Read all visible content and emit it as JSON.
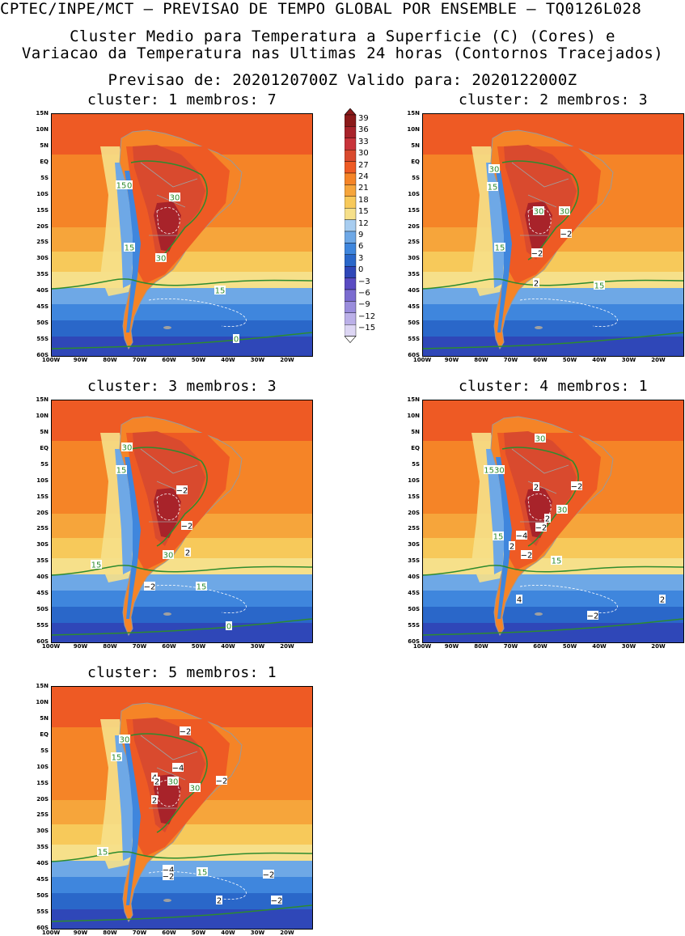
{
  "header": {
    "line1": "CPTEC/INPE/MCT – PREVISAO DE TEMPO GLOBAL POR ENSEMBLE – TQ0126L028",
    "line2": "Cluster Medio para Temperatura a Superficie (C) (Cores) e",
    "line3": "Variacao da Temperatura nas Ultimas 24 horas (Contornos Tracejados)",
    "line4": "Previsao de: 2020120700Z   Valido para: 2020122000Z"
  },
  "axes": {
    "lat_labels": [
      "15N",
      "10N",
      "5N",
      "EQ",
      "5S",
      "10S",
      "15S",
      "20S",
      "25S",
      "30S",
      "35S",
      "40S",
      "45S",
      "50S",
      "55S",
      "60S"
    ],
    "lon_labels": [
      "100W",
      "90W",
      "80W",
      "70W",
      "60W",
      "50W",
      "40W",
      "30W",
      "20W"
    ]
  },
  "colorbar": {
    "labels": [
      "39",
      "36",
      "33",
      "30",
      "27",
      "24",
      "21",
      "18",
      "15",
      "12",
      "9",
      "6",
      "3",
      "0",
      "−3",
      "−6",
      "−9",
      "−12",
      "−15"
    ],
    "colors": [
      "#8b1a1a",
      "#a8232a",
      "#c8343a",
      "#d94a2e",
      "#ee5a24",
      "#f58427",
      "#f6a53b",
      "#f7c95a",
      "#f6e08a",
      "#a8cdf0",
      "#6ea8e6",
      "#3f86dd",
      "#2a67c9",
      "#2f47b8",
      "#5a4bc2",
      "#7b6cd0",
      "#9a8ddc",
      "#bbb0e8",
      "#ddd6f4"
    ]
  },
  "panels": [
    {
      "title": "cluster: 1   membros: 7",
      "labels": [
        {
          "t": "30",
          "c": "g"
        },
        {
          "t": "15",
          "c": "g"
        },
        {
          "t": "30",
          "c": "g"
        },
        {
          "t": "30",
          "c": "g"
        },
        {
          "t": "15",
          "c": "g"
        },
        {
          "t": "15",
          "c": "g"
        },
        {
          "t": "0",
          "c": "g"
        }
      ]
    },
    {
      "title": "cluster: 2   membros: 3",
      "labels": [
        {
          "t": "30",
          "c": "g"
        },
        {
          "t": "15",
          "c": "g"
        },
        {
          "t": "30",
          "c": "g"
        },
        {
          "t": "30",
          "c": "g"
        },
        {
          "t": "−2",
          "c": "k"
        },
        {
          "t": "15",
          "c": "g"
        },
        {
          "t": "−2",
          "c": "k"
        },
        {
          "t": "2",
          "c": "k"
        },
        {
          "t": "15",
          "c": "g"
        }
      ]
    },
    {
      "title": "cluster: 3   membros: 3",
      "labels": [
        {
          "t": "30",
          "c": "g"
        },
        {
          "t": "15",
          "c": "g"
        },
        {
          "t": "−2",
          "c": "k"
        },
        {
          "t": "−2",
          "c": "k"
        },
        {
          "t": "30",
          "c": "g"
        },
        {
          "t": "2",
          "c": "k"
        },
        {
          "t": "15",
          "c": "g"
        },
        {
          "t": "−2",
          "c": "k"
        },
        {
          "t": "15",
          "c": "g"
        },
        {
          "t": "0",
          "c": "g"
        }
      ]
    },
    {
      "title": "cluster: 4   membros: 1",
      "labels": [
        {
          "t": "30",
          "c": "g"
        },
        {
          "t": "1530",
          "c": "g"
        },
        {
          "t": "2",
          "c": "k"
        },
        {
          "t": "−2",
          "c": "k"
        },
        {
          "t": "30",
          "c": "g"
        },
        {
          "t": "2",
          "c": "k"
        },
        {
          "t": "−2",
          "c": "k"
        },
        {
          "t": "15",
          "c": "g"
        },
        {
          "t": "−4",
          "c": "k"
        },
        {
          "t": "2",
          "c": "k"
        },
        {
          "t": "−2",
          "c": "k"
        },
        {
          "t": "15",
          "c": "g"
        },
        {
          "t": "4",
          "c": "k"
        },
        {
          "t": "−2",
          "c": "k"
        },
        {
          "t": "2",
          "c": "k"
        }
      ]
    },
    {
      "title": "cluster: 5   membros: 1",
      "labels": [
        {
          "t": "−2",
          "c": "k"
        },
        {
          "t": "30",
          "c": "g"
        },
        {
          "t": "15",
          "c": "g"
        },
        {
          "t": "−4",
          "c": "k"
        },
        {
          "t": "4",
          "c": "k"
        },
        {
          "t": "2",
          "c": "k"
        },
        {
          "t": "30",
          "c": "g"
        },
        {
          "t": "30",
          "c": "g"
        },
        {
          "t": "−2",
          "c": "k"
        },
        {
          "t": "2",
          "c": "k"
        },
        {
          "t": "15",
          "c": "g"
        },
        {
          "t": "−4",
          "c": "k"
        },
        {
          "t": "−2",
          "c": "k"
        },
        {
          "t": "15",
          "c": "g"
        },
        {
          "t": "−2",
          "c": "k"
        },
        {
          "t": "2",
          "c": "k"
        },
        {
          "t": "−2",
          "c": "k"
        }
      ]
    }
  ]
}
